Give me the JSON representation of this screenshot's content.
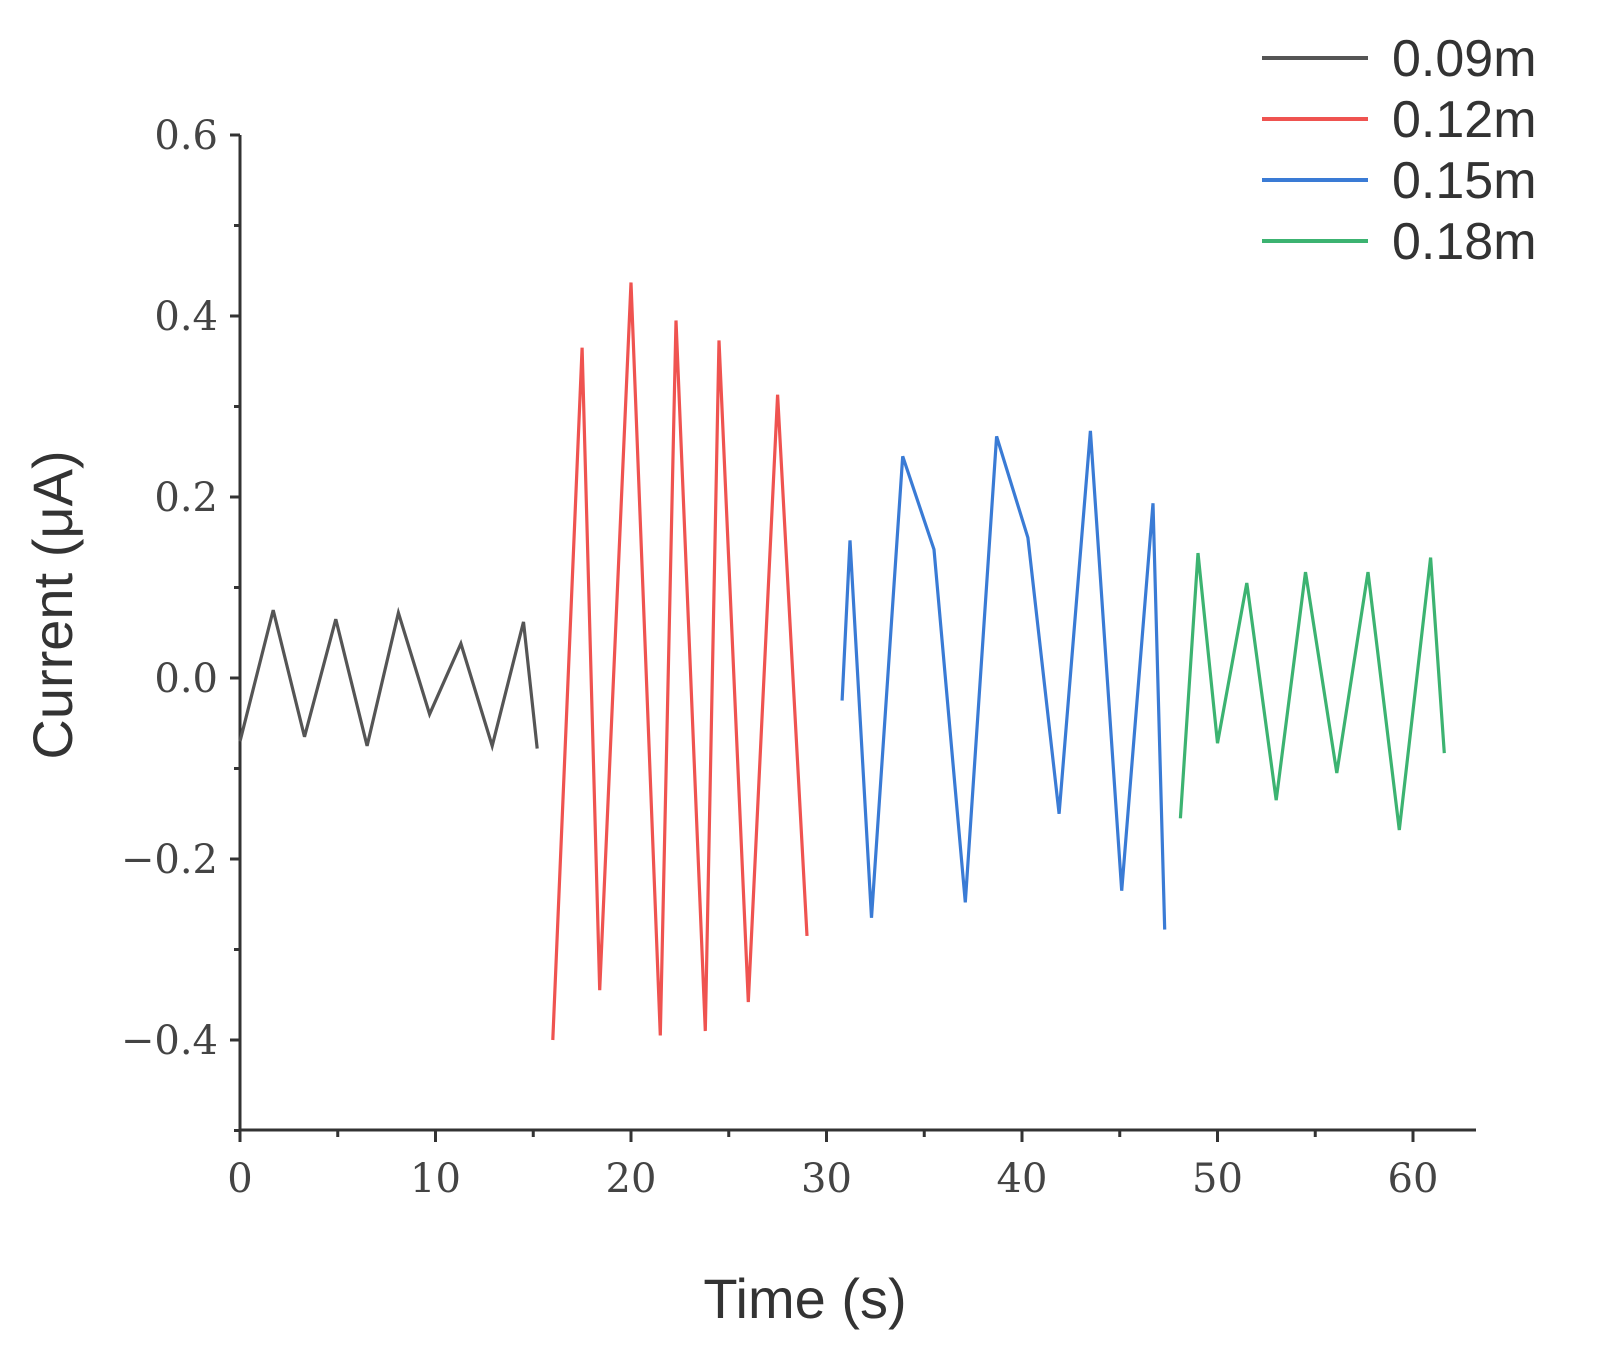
{
  "chart_data": {
    "type": "line",
    "title": "",
    "xlabel": "Time (s)",
    "ylabel": "Current (μA)",
    "xlim": [
      0,
      63
    ],
    "ylim": [
      -0.5,
      0.6
    ],
    "x_ticks": [
      0,
      10,
      20,
      30,
      40,
      50,
      60
    ],
    "x_tick_labels": [
      "0",
      "10",
      "20",
      "30",
      "40",
      "50",
      "60"
    ],
    "y_ticks": [
      -0.4,
      -0.2,
      0.0,
      0.2,
      0.4,
      0.6
    ],
    "y_tick_labels": [
      "−0.4",
      "−0.2",
      "0.0",
      "0.2",
      "0.4",
      "0.6"
    ],
    "grid": false,
    "legend_position": "top-right",
    "series": [
      {
        "name": "0.09m",
        "color": "#555555",
        "x": [
          0.0,
          1.7,
          3.3,
          4.9,
          6.5,
          8.1,
          9.7,
          11.3,
          12.9,
          14.5,
          15.2
        ],
        "y": [
          -0.07,
          0.075,
          -0.065,
          0.065,
          -0.075,
          0.072,
          -0.04,
          0.038,
          -0.075,
          0.062,
          -0.078
        ]
      },
      {
        "name": "0.12m",
        "color": "#ef5350",
        "x": [
          16.0,
          17.5,
          18.4,
          20.0,
          21.5,
          22.3,
          23.8,
          24.5,
          26.0,
          27.5,
          29.0
        ],
        "y": [
          -0.4,
          0.365,
          -0.345,
          0.437,
          -0.395,
          0.395,
          -0.39,
          0.373,
          -0.358,
          0.313,
          -0.285
        ]
      },
      {
        "name": "0.15m",
        "color": "#3a7bd5",
        "x": [
          30.8,
          31.2,
          32.3,
          33.9,
          35.5,
          37.1,
          38.7,
          40.3,
          41.9,
          43.5,
          45.1,
          46.7,
          47.3
        ],
        "y": [
          -0.025,
          0.152,
          -0.265,
          0.245,
          0.142,
          -0.248,
          0.267,
          0.155,
          -0.15,
          0.273,
          -0.235,
          0.193,
          -0.278
        ]
      },
      {
        "name": "0.18m",
        "color": "#3cb371",
        "x": [
          48.1,
          49.0,
          50.0,
          51.5,
          53.0,
          54.5,
          56.1,
          57.7,
          59.3,
          60.9,
          61.6
        ],
        "y": [
          -0.155,
          0.138,
          -0.072,
          0.105,
          -0.135,
          0.117,
          -0.105,
          0.117,
          -0.168,
          0.133,
          -0.083
        ]
      }
    ]
  }
}
